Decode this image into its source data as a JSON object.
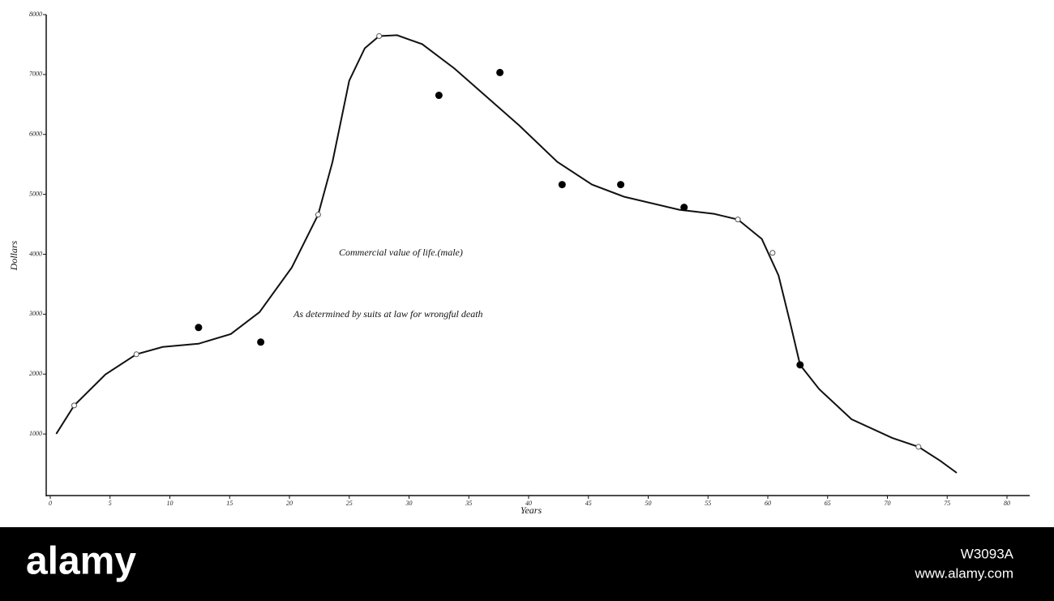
{
  "chart_data": {
    "type": "line",
    "xlabel": "Years",
    "ylabel": "Dollars",
    "annotations": [
      "Commercial value of life.(male)",
      "As determined by suits at law for wrongful death"
    ],
    "xlim": [
      0,
      80
    ],
    "xticks": [
      0,
      5,
      10,
      15,
      20,
      25,
      30,
      35,
      40,
      45,
      50,
      55,
      60,
      65,
      70,
      75,
      80
    ],
    "ylim": [
      0,
      8000
    ],
    "yticks": [
      1000,
      2000,
      3000,
      4000,
      5000,
      6000,
      7000,
      8000
    ],
    "series": [
      {
        "style": "line",
        "color": "#111",
        "x": [
          0.5,
          2.0,
          4.6,
          7.2,
          9.4,
          12.4,
          15.1,
          17.5,
          20.2,
          22.4,
          23.6,
          25.0,
          26.3,
          27.5,
          29.0,
          31.1,
          33.8,
          36.5,
          39.2,
          42.4,
          45.3,
          48.0,
          52.6,
          55.5,
          57.5,
          59.5,
          60.9,
          61.9,
          62.7,
          64.3,
          67.0,
          70.4,
          72.6,
          74.4,
          75.8
        ],
        "values": [
          1003,
          1477,
          1992,
          2331,
          2453,
          2507,
          2669,
          3035,
          3780,
          4661,
          5542,
          6897,
          7439,
          7642,
          7656,
          7507,
          7100,
          6626,
          6152,
          5542,
          5163,
          4959,
          4743,
          4675,
          4580,
          4255,
          3645,
          2832,
          2154,
          1748,
          1247,
          935,
          786,
          556,
          352
        ]
      },
      {
        "style": "dot",
        "color": "#000",
        "x": [
          12.4,
          17.6,
          32.5,
          37.6,
          42.8,
          47.7,
          53.0,
          62.7
        ],
        "values": [
          2778,
          2534,
          6653,
          7033,
          5163,
          5163,
          4783,
          2154
        ]
      },
      {
        "style": "circle",
        "color": "#555",
        "x": [
          2.0,
          7.2,
          22.4,
          27.5,
          57.5,
          60.4,
          72.6
        ],
        "values": [
          1477,
          2331,
          4661,
          7642,
          4580,
          4024,
          786
        ]
      }
    ]
  },
  "watermark": {
    "logo": "alamy",
    "id": "W3093A",
    "url": "www.alamy.com"
  }
}
